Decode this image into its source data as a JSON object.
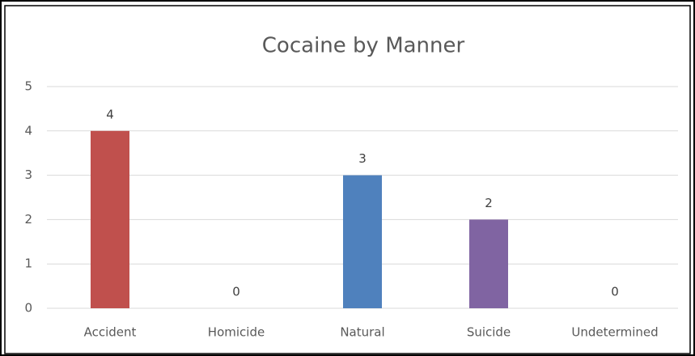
{
  "chart_data": {
    "type": "bar",
    "title": "Cocaine by Manner",
    "categories": [
      "Accident",
      "Homicide",
      "Natural",
      "Suicide",
      "Undetermined"
    ],
    "values": [
      4,
      0,
      3,
      2,
      0
    ],
    "colors": [
      "#c0504d",
      "#9bbb59",
      "#4f81bd",
      "#8064a2",
      "#4bacc6"
    ],
    "ylim": [
      0,
      5
    ],
    "yticks": [
      0,
      1,
      2,
      3,
      4,
      5
    ],
    "grid": true
  }
}
